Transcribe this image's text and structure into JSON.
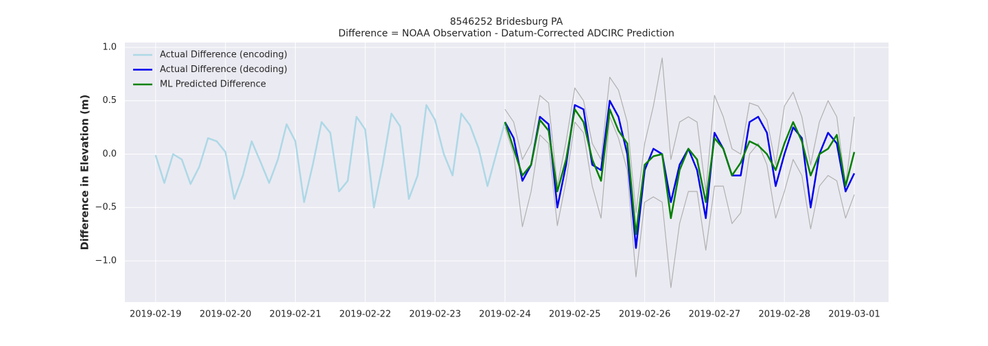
{
  "chart_data": {
    "type": "line",
    "title": "8546252 Bridesburg PA",
    "subtitle": "Difference = NOAA Observation - Datum-Corrected ADCIRC Prediction",
    "y_label": "Difference in Elevation (m)",
    "x": [
      0,
      0.125,
      0.25,
      0.375,
      0.5,
      0.625,
      0.75,
      0.875,
      1,
      1.125,
      1.25,
      1.375,
      1.5,
      1.625,
      1.75,
      1.875,
      2,
      2.125,
      2.25,
      2.375,
      2.5,
      2.625,
      2.75,
      2.875,
      3,
      3.125,
      3.25,
      3.375,
      3.5,
      3.625,
      3.75,
      3.875,
      4,
      4.125,
      4.25,
      4.375,
      4.5,
      4.625,
      4.75,
      4.875,
      5,
      5.125,
      5.25,
      5.375,
      5.5,
      5.625,
      5.75,
      5.875,
      6,
      6.125,
      6.25,
      6.375,
      6.5,
      6.625,
      6.75,
      6.875,
      7,
      7.125,
      7.25,
      7.375,
      7.5,
      7.625,
      7.75,
      7.875,
      8,
      8.125,
      8.25,
      8.375,
      8.5,
      8.625,
      8.75,
      8.875,
      9,
      9.125,
      9.25,
      9.375,
      9.5,
      9.625,
      9.75,
      9.875,
      10
    ],
    "series": [
      {
        "color": "#b0b0b0",
        "values": [
          null,
          null,
          null,
          null,
          null,
          null,
          null,
          null,
          null,
          null,
          null,
          null,
          null,
          null,
          null,
          null,
          null,
          null,
          null,
          null,
          null,
          null,
          null,
          null,
          null,
          null,
          null,
          null,
          null,
          null,
          null,
          null,
          null,
          null,
          null,
          null,
          null,
          null,
          null,
          null,
          0.42,
          0.3,
          -0.05,
          0.1,
          0.55,
          0.48,
          -0.3,
          0.12,
          0.62,
          0.5,
          0.1,
          -0.05,
          0.72,
          0.6,
          0.3,
          -0.55,
          0.1,
          0.45,
          0.9,
          -0.05,
          0.3,
          0.35,
          0.3,
          -0.35,
          0.55,
          0.35,
          0.05,
          0.0,
          0.48,
          0.45,
          0.32,
          -0.1,
          0.45,
          0.58,
          0.35,
          -0.1,
          0.3,
          0.5,
          0.35,
          -0.3,
          0.35
        ]
      },
      {
        "color": "#b0b0b0",
        "values": [
          null,
          null,
          null,
          null,
          null,
          null,
          null,
          null,
          null,
          null,
          null,
          null,
          null,
          null,
          null,
          null,
          null,
          null,
          null,
          null,
          null,
          null,
          null,
          null,
          null,
          null,
          null,
          null,
          null,
          null,
          null,
          null,
          null,
          null,
          null,
          null,
          null,
          null,
          null,
          null,
          0.25,
          0.0,
          -0.68,
          -0.35,
          0.18,
          0.1,
          -0.67,
          -0.25,
          0.3,
          0.2,
          -0.3,
          -0.6,
          0.35,
          0.15,
          -0.15,
          -1.15,
          -0.45,
          -0.4,
          -0.45,
          -1.25,
          -0.65,
          -0.35,
          -0.35,
          -0.9,
          -0.3,
          -0.3,
          -0.65,
          -0.55,
          0.0,
          0.1,
          -0.1,
          -0.6,
          -0.35,
          -0.05,
          -0.2,
          -0.7,
          -0.3,
          -0.2,
          -0.25,
          -0.6,
          -0.38
        ]
      },
      {
        "name": "Actual Difference (encoding)",
        "color": "#add8e6",
        "values": [
          -0.01,
          -0.27,
          0.0,
          -0.05,
          -0.28,
          -0.12,
          0.15,
          0.12,
          0.02,
          -0.42,
          -0.2,
          0.12,
          -0.07,
          -0.27,
          -0.05,
          0.28,
          0.12,
          -0.45,
          -0.1,
          0.3,
          0.2,
          -0.35,
          -0.25,
          0.35,
          0.23,
          -0.5,
          -0.1,
          0.38,
          0.26,
          -0.42,
          -0.2,
          0.46,
          0.32,
          0.0,
          -0.2,
          0.38,
          0.27,
          0.05,
          -0.3,
          0.0,
          0.3,
          null,
          null,
          null,
          null,
          null,
          null,
          null,
          null,
          null,
          null,
          null,
          null,
          null,
          null,
          null,
          null,
          null,
          null,
          null,
          null,
          null,
          null,
          null,
          null,
          null,
          null,
          null,
          null,
          null,
          null,
          null,
          null,
          null,
          null,
          null,
          null,
          null,
          null,
          null,
          null
        ]
      },
      {
        "name": "Actual Difference (decoding)",
        "color": "#0000ee",
        "values": [
          null,
          null,
          null,
          null,
          null,
          null,
          null,
          null,
          null,
          null,
          null,
          null,
          null,
          null,
          null,
          null,
          null,
          null,
          null,
          null,
          null,
          null,
          null,
          null,
          null,
          null,
          null,
          null,
          null,
          null,
          null,
          null,
          null,
          null,
          null,
          null,
          null,
          null,
          null,
          null,
          0.3,
          0.15,
          -0.25,
          -0.1,
          0.35,
          0.28,
          -0.5,
          -0.1,
          0.46,
          0.42,
          -0.1,
          -0.15,
          0.5,
          0.35,
          0.0,
          -0.88,
          -0.15,
          0.05,
          0.0,
          -0.45,
          -0.1,
          0.05,
          -0.15,
          -0.6,
          0.2,
          0.05,
          -0.2,
          -0.2,
          0.3,
          0.35,
          0.2,
          -0.3,
          0.0,
          0.25,
          0.15,
          -0.5,
          0.0,
          0.2,
          0.1,
          -0.35,
          -0.18
        ]
      },
      {
        "name": "ML Predicted Difference",
        "color": "#008000",
        "values": [
          null,
          null,
          null,
          null,
          null,
          null,
          null,
          null,
          null,
          null,
          null,
          null,
          null,
          null,
          null,
          null,
          null,
          null,
          null,
          null,
          null,
          null,
          null,
          null,
          null,
          null,
          null,
          null,
          null,
          null,
          null,
          null,
          null,
          null,
          null,
          null,
          null,
          null,
          null,
          null,
          0.3,
          0.05,
          -0.2,
          -0.1,
          0.32,
          0.22,
          -0.35,
          -0.05,
          0.42,
          0.3,
          -0.05,
          -0.25,
          0.42,
          0.22,
          0.1,
          -0.75,
          -0.1,
          -0.02,
          0.0,
          -0.6,
          -0.15,
          0.05,
          -0.05,
          -0.45,
          0.15,
          0.05,
          -0.2,
          -0.08,
          0.12,
          0.08,
          0.0,
          -0.15,
          0.1,
          0.3,
          0.12,
          -0.2,
          0.0,
          0.05,
          0.18,
          -0.3,
          0.02
        ]
      }
    ],
    "xlim": [
      -0.44,
      10.49
    ],
    "xticks": [
      {
        "value": 0,
        "label": "2019-02-19"
      },
      {
        "value": 1,
        "label": "2019-02-20"
      },
      {
        "value": 2,
        "label": "2019-02-21"
      },
      {
        "value": 3,
        "label": "2019-02-22"
      },
      {
        "value": 4,
        "label": "2019-02-23"
      },
      {
        "value": 5,
        "label": "2019-02-24"
      },
      {
        "value": 6,
        "label": "2019-02-25"
      },
      {
        "value": 7,
        "label": "2019-02-26"
      },
      {
        "value": 8,
        "label": "2019-02-27"
      },
      {
        "value": 9,
        "label": "2019-02-28"
      },
      {
        "value": 10,
        "label": "2019-03-01"
      }
    ],
    "ylim": [
      -1.386,
      1.045
    ],
    "yticks": [
      {
        "value": 1.0,
        "label": "1.0"
      },
      {
        "value": 0.5,
        "label": "0.5"
      },
      {
        "value": 0.0,
        "label": "0.0"
      },
      {
        "value": -0.5,
        "label": "−0.5"
      },
      {
        "value": -1.0,
        "label": "−1.0"
      }
    ],
    "grid": true,
    "legend": "upper left"
  }
}
